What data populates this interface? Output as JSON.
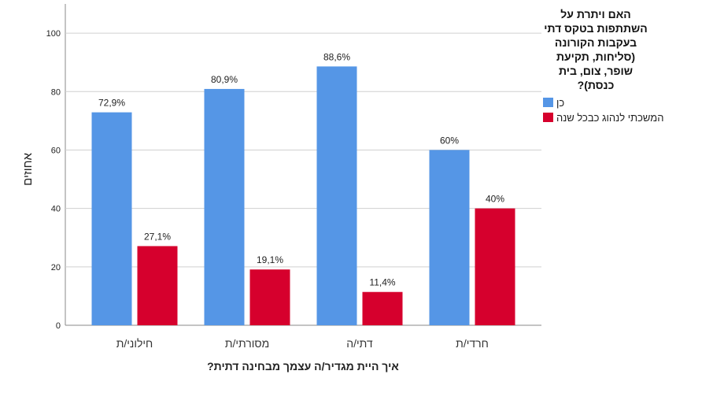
{
  "chart_data": {
    "type": "bar",
    "title": "",
    "xlabel": "איך היית מגדיר/ה עצמך מבחינה דתית?",
    "ylabel": "אחוזים",
    "ylim": [
      0,
      110
    ],
    "yticks": [
      0,
      20,
      40,
      60,
      80,
      100
    ],
    "grid": true,
    "categories": [
      "חילוני/ת",
      "מסורתי/ת",
      "דתי/ה",
      "חרדי/ת"
    ],
    "series": [
      {
        "name": "כן",
        "color": "#5596e6",
        "values": [
          72.9,
          80.9,
          88.6,
          60
        ],
        "labels": [
          "72,9%",
          "80,9%",
          "88,6%",
          "60%"
        ]
      },
      {
        "name": "המשכתי לנהוג כבכל שנה",
        "color": "#d6002d",
        "values": [
          27.1,
          19.1,
          11.4,
          40
        ],
        "labels": [
          "27,1%",
          "19,1%",
          "11,4%",
          "40%"
        ]
      }
    ],
    "legend": {
      "placement": "right",
      "title_lines": [
        "האם ויתרת על",
        "השתתפות בטקס דתי",
        "בעקבות הקורונה",
        "(סליחות, תקיעת",
        "שופר, צום, בית",
        "כנסת)?"
      ]
    }
  }
}
